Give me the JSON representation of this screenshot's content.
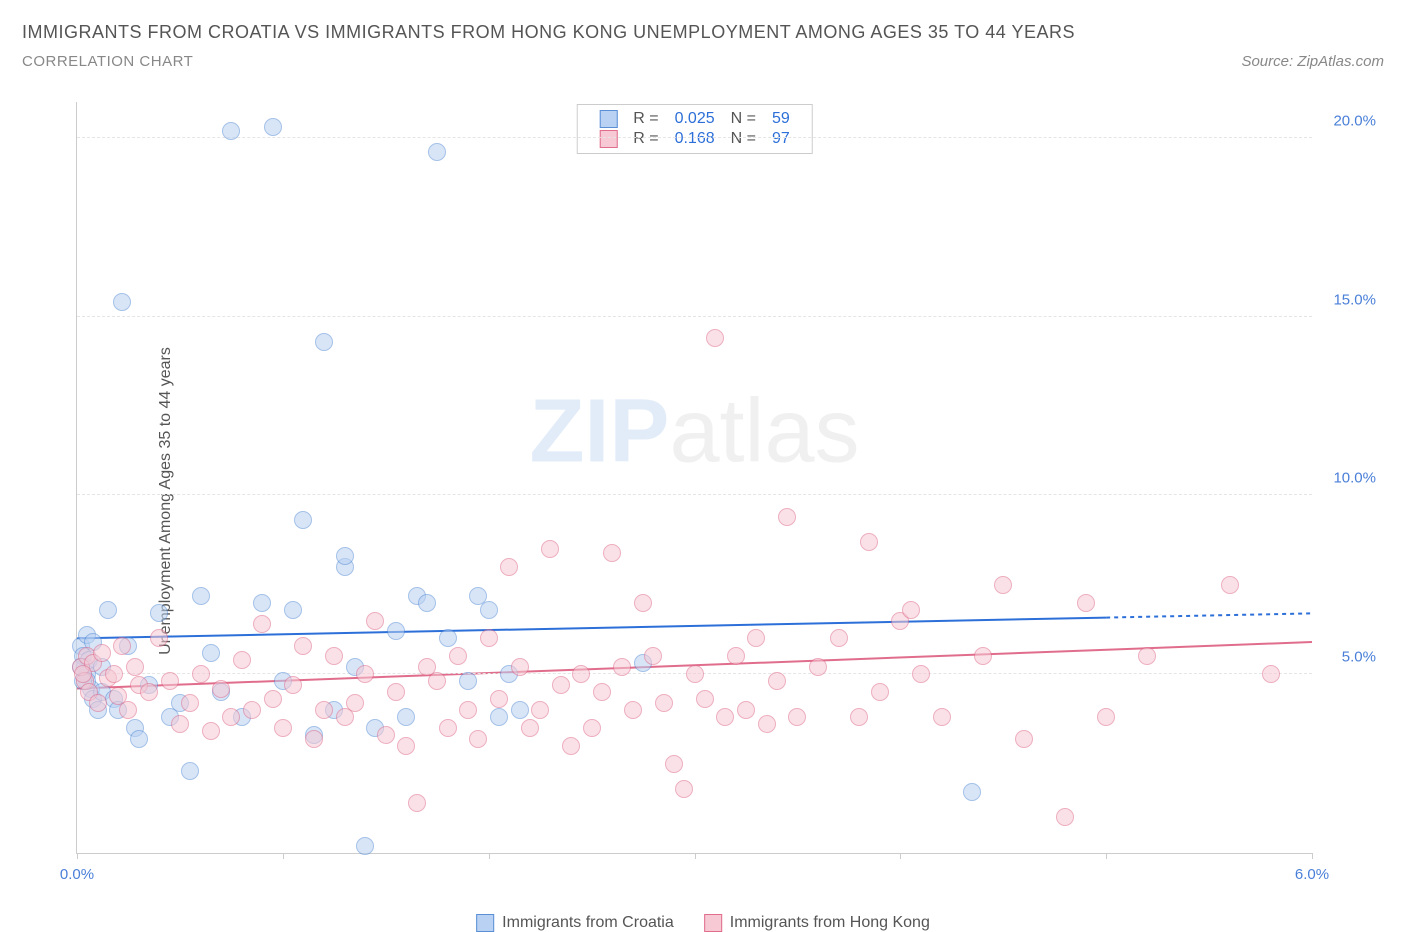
{
  "title": "IMMIGRANTS FROM CROATIA VS IMMIGRANTS FROM HONG KONG UNEMPLOYMENT AMONG AGES 35 TO 44 YEARS",
  "subtitle": "CORRELATION CHART",
  "source": "Source: ZipAtlas.com",
  "watermark_a": "ZIP",
  "watermark_b": "atlas",
  "chart": {
    "type": "scatter",
    "ylabel": "Unemployment Among Ages 35 to 44 years",
    "xlim": [
      0.0,
      6.0
    ],
    "ylim": [
      0.0,
      21.0
    ],
    "yticks": [
      5.0,
      10.0,
      15.0,
      20.0
    ],
    "ytick_labels": [
      "5.0%",
      "10.0%",
      "15.0%",
      "20.0%"
    ],
    "xticks": [
      0.0,
      1.0,
      2.0,
      3.0,
      4.0,
      5.0,
      6.0
    ],
    "xtick_labels": {
      "0": "0.0%",
      "6": "6.0%"
    },
    "background_color": "#ffffff",
    "grid_color": "#e5e5e5",
    "axis_color": "#cccccc",
    "point_radius": 9,
    "point_opacity": 0.55,
    "series": [
      {
        "name": "Immigrants from Croatia",
        "label": "Immigrants from Croatia",
        "fill": "#b9d1f2",
        "stroke": "#5a8fd6",
        "line_color": "#2c6fd8",
        "R": "0.025",
        "N": "59",
        "trend": {
          "x1": 0.0,
          "y1": 6.0,
          "x2": 6.0,
          "y2": 6.7,
          "solid_until_x": 5.0
        },
        "points": [
          [
            0.02,
            5.8
          ],
          [
            0.03,
            5.5
          ],
          [
            0.04,
            5.2
          ],
          [
            0.05,
            6.1
          ],
          [
            0.05,
            5.0
          ],
          [
            0.06,
            5.4
          ],
          [
            0.07,
            4.6
          ],
          [
            0.08,
            4.3
          ],
          [
            0.08,
            5.9
          ],
          [
            0.1,
            4.0
          ],
          [
            0.12,
            4.5
          ],
          [
            0.15,
            6.8
          ],
          [
            0.18,
            4.3
          ],
          [
            0.2,
            4.0
          ],
          [
            0.22,
            15.4
          ],
          [
            0.25,
            5.8
          ],
          [
            0.28,
            3.5
          ],
          [
            0.3,
            3.2
          ],
          [
            0.35,
            4.7
          ],
          [
            0.4,
            6.7
          ],
          [
            0.45,
            3.8
          ],
          [
            0.5,
            4.2
          ],
          [
            0.55,
            2.3
          ],
          [
            0.6,
            7.2
          ],
          [
            0.65,
            5.6
          ],
          [
            0.7,
            4.5
          ],
          [
            0.75,
            20.2
          ],
          [
            0.8,
            3.8
          ],
          [
            0.9,
            7.0
          ],
          [
            0.95,
            20.3
          ],
          [
            1.0,
            4.8
          ],
          [
            1.05,
            6.8
          ],
          [
            1.1,
            9.3
          ],
          [
            1.15,
            3.3
          ],
          [
            1.2,
            14.3
          ],
          [
            1.25,
            4.0
          ],
          [
            1.3,
            8.0
          ],
          [
            1.3,
            8.3
          ],
          [
            1.35,
            5.2
          ],
          [
            1.4,
            0.2
          ],
          [
            1.45,
            3.5
          ],
          [
            1.55,
            6.2
          ],
          [
            1.6,
            3.8
          ],
          [
            1.65,
            7.2
          ],
          [
            1.7,
            7.0
          ],
          [
            1.75,
            19.6
          ],
          [
            1.8,
            6.0
          ],
          [
            1.9,
            4.8
          ],
          [
            1.95,
            7.2
          ],
          [
            2.0,
            6.8
          ],
          [
            2.05,
            3.8
          ],
          [
            2.1,
            5.0
          ],
          [
            2.15,
            4.0
          ],
          [
            2.75,
            5.3
          ],
          [
            4.35,
            1.7
          ],
          [
            0.05,
            4.8
          ],
          [
            0.12,
            5.2
          ],
          [
            0.03,
            4.8
          ],
          [
            0.02,
            5.2
          ]
        ]
      },
      {
        "name": "Immigrants from Hong Kong",
        "label": "Immigrants from Hong Kong",
        "fill": "#f6c9d4",
        "stroke": "#e06d8c",
        "line_color": "#e06d8c",
        "R": "0.168",
        "N": "97",
        "trend": {
          "x1": 0.0,
          "y1": 4.6,
          "x2": 6.0,
          "y2": 5.9,
          "solid_until_x": 6.0
        },
        "points": [
          [
            0.02,
            5.2
          ],
          [
            0.04,
            4.8
          ],
          [
            0.05,
            5.5
          ],
          [
            0.06,
            4.5
          ],
          [
            0.08,
            5.3
          ],
          [
            0.1,
            4.2
          ],
          [
            0.12,
            5.6
          ],
          [
            0.15,
            4.9
          ],
          [
            0.18,
            5.0
          ],
          [
            0.2,
            4.4
          ],
          [
            0.22,
            5.8
          ],
          [
            0.25,
            4.0
          ],
          [
            0.28,
            5.2
          ],
          [
            0.3,
            4.7
          ],
          [
            0.35,
            4.5
          ],
          [
            0.4,
            6.0
          ],
          [
            0.45,
            4.8
          ],
          [
            0.5,
            3.6
          ],
          [
            0.55,
            4.2
          ],
          [
            0.6,
            5.0
          ],
          [
            0.65,
            3.4
          ],
          [
            0.7,
            4.6
          ],
          [
            0.75,
            3.8
          ],
          [
            0.8,
            5.4
          ],
          [
            0.85,
            4.0
          ],
          [
            0.9,
            6.4
          ],
          [
            0.95,
            4.3
          ],
          [
            1.0,
            3.5
          ],
          [
            1.05,
            4.7
          ],
          [
            1.1,
            5.8
          ],
          [
            1.15,
            3.2
          ],
          [
            1.2,
            4.0
          ],
          [
            1.25,
            5.5
          ],
          [
            1.3,
            3.8
          ],
          [
            1.35,
            4.2
          ],
          [
            1.4,
            5.0
          ],
          [
            1.45,
            6.5
          ],
          [
            1.5,
            3.3
          ],
          [
            1.55,
            4.5
          ],
          [
            1.6,
            3.0
          ],
          [
            1.65,
            1.4
          ],
          [
            1.7,
            5.2
          ],
          [
            1.75,
            4.8
          ],
          [
            1.8,
            3.5
          ],
          [
            1.85,
            5.5
          ],
          [
            1.9,
            4.0
          ],
          [
            1.95,
            3.2
          ],
          [
            2.0,
            6.0
          ],
          [
            2.05,
            4.3
          ],
          [
            2.1,
            8.0
          ],
          [
            2.15,
            5.2
          ],
          [
            2.2,
            3.5
          ],
          [
            2.25,
            4.0
          ],
          [
            2.3,
            8.5
          ],
          [
            2.35,
            4.7
          ],
          [
            2.4,
            3.0
          ],
          [
            2.45,
            5.0
          ],
          [
            2.5,
            3.5
          ],
          [
            2.55,
            4.5
          ],
          [
            2.6,
            8.4
          ],
          [
            2.65,
            5.2
          ],
          [
            2.7,
            4.0
          ],
          [
            2.75,
            7.0
          ],
          [
            2.8,
            5.5
          ],
          [
            2.85,
            4.2
          ],
          [
            2.9,
            2.5
          ],
          [
            2.95,
            1.8
          ],
          [
            3.0,
            5.0
          ],
          [
            3.05,
            4.3
          ],
          [
            3.1,
            14.4
          ],
          [
            3.15,
            3.8
          ],
          [
            3.2,
            5.5
          ],
          [
            3.25,
            4.0
          ],
          [
            3.3,
            6.0
          ],
          [
            3.35,
            3.6
          ],
          [
            3.4,
            4.8
          ],
          [
            3.45,
            9.4
          ],
          [
            3.5,
            3.8
          ],
          [
            3.6,
            5.2
          ],
          [
            3.7,
            6.0
          ],
          [
            3.8,
            3.8
          ],
          [
            3.85,
            8.7
          ],
          [
            3.9,
            4.5
          ],
          [
            4.0,
            6.5
          ],
          [
            4.05,
            6.8
          ],
          [
            4.1,
            5.0
          ],
          [
            4.2,
            3.8
          ],
          [
            4.4,
            5.5
          ],
          [
            4.5,
            7.5
          ],
          [
            4.6,
            3.2
          ],
          [
            4.8,
            1.0
          ],
          [
            4.9,
            7.0
          ],
          [
            5.0,
            3.8
          ],
          [
            5.2,
            5.5
          ],
          [
            5.6,
            7.5
          ],
          [
            5.8,
            5.0
          ],
          [
            0.03,
            5.0
          ]
        ]
      }
    ]
  },
  "stat_legend": {
    "r_label": "R =",
    "n_label": "N ="
  }
}
